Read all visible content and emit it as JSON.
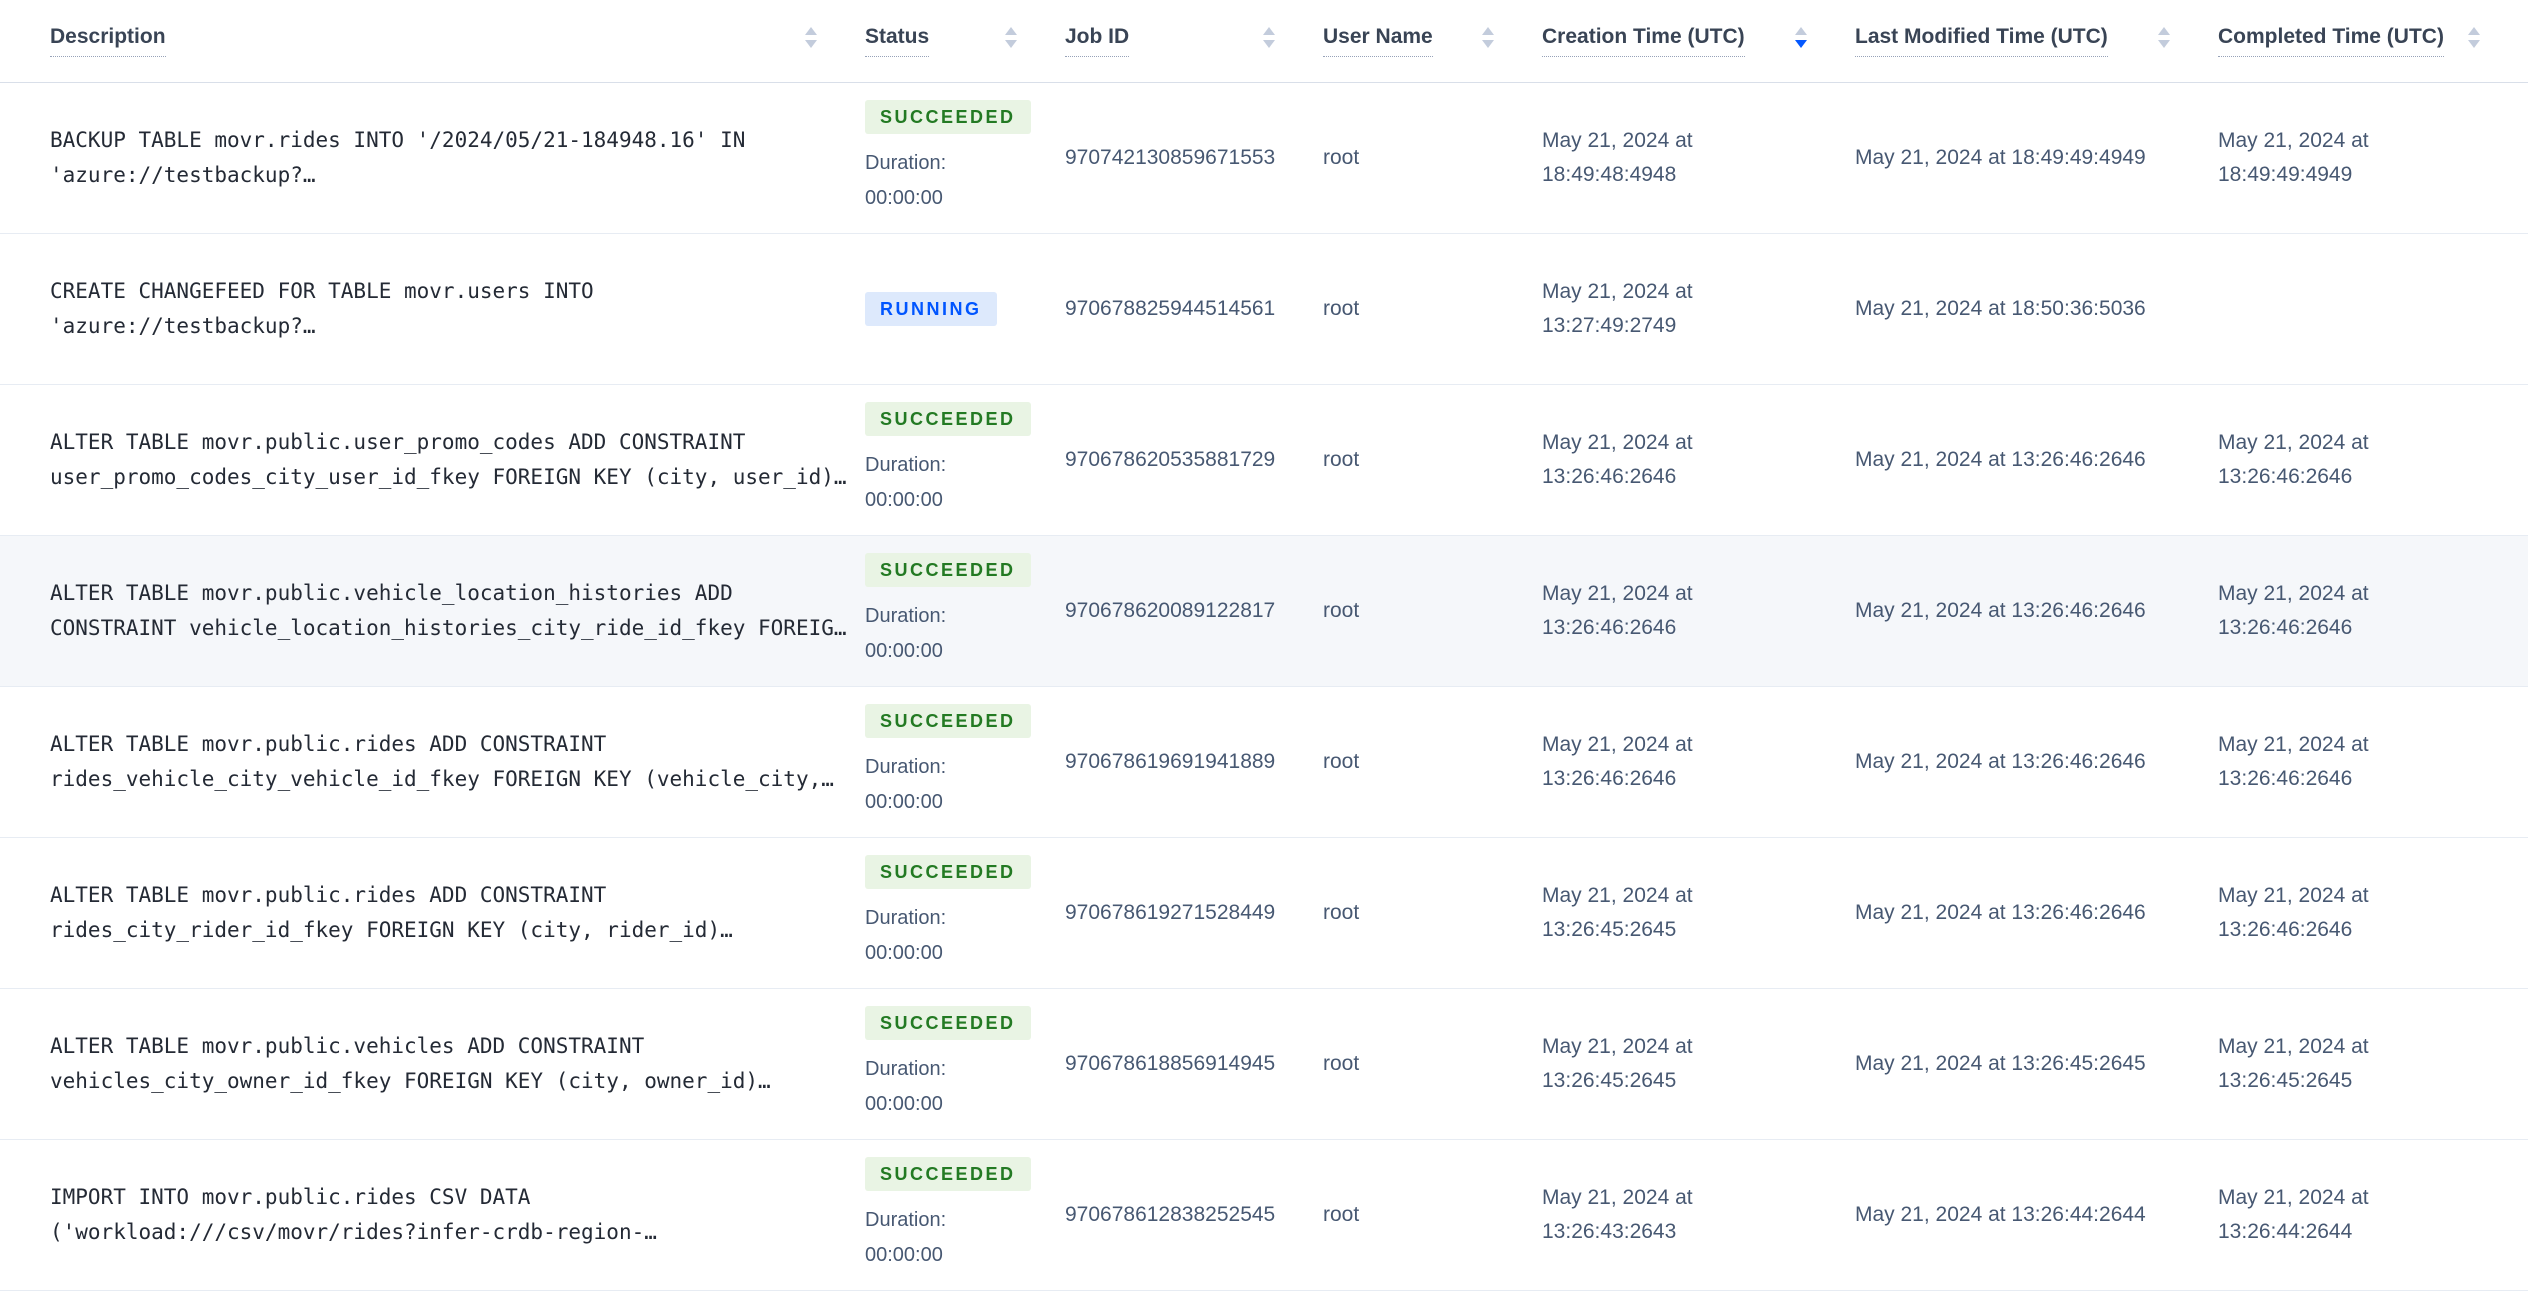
{
  "table": {
    "columns": [
      {
        "label": "Description",
        "sort": "none"
      },
      {
        "label": "Status",
        "sort": "none"
      },
      {
        "label": "Job ID",
        "sort": "none"
      },
      {
        "label": "User Name",
        "sort": "none"
      },
      {
        "label": "Creation Time (UTC)",
        "sort": "desc"
      },
      {
        "label": "Last Modified Time (UTC)",
        "sort": "none"
      },
      {
        "label": "Completed Time (UTC)",
        "sort": "none"
      }
    ],
    "duration_label": "Duration:",
    "rows": [
      {
        "description": "BACKUP TABLE movr.rides INTO '/2024/05/21-184948.16' IN 'azure://testbackup?…",
        "status": "SUCCEEDED",
        "duration": "00:00:00",
        "job_id": "970742130859671553",
        "user_name": "root",
        "creation_time": "May 21, 2024 at 18:49:48:4948",
        "last_modified_time": "May 21, 2024 at 18:49:49:4949",
        "completed_time": "May 21, 2024 at 18:49:49:4949",
        "highlighted": false
      },
      {
        "description": "CREATE CHANGEFEED FOR TABLE movr.users INTO 'azure://testbackup?…",
        "status": "RUNNING",
        "duration": "",
        "job_id": "970678825944514561",
        "user_name": "root",
        "creation_time": "May 21, 2024 at 13:27:49:2749",
        "last_modified_time": "May 21, 2024 at 18:50:36:5036",
        "completed_time": "",
        "highlighted": false
      },
      {
        "description": "ALTER TABLE movr.public.user_promo_codes ADD CONSTRAINT user_promo_codes_city_user_id_fkey FOREIGN KEY (city, user_id)…",
        "status": "SUCCEEDED",
        "duration": "00:00:00",
        "job_id": "970678620535881729",
        "user_name": "root",
        "creation_time": "May 21, 2024 at 13:26:46:2646",
        "last_modified_time": "May 21, 2024 at 13:26:46:2646",
        "completed_time": "May 21, 2024 at 13:26:46:2646",
        "highlighted": false
      },
      {
        "description": "ALTER TABLE movr.public.vehicle_location_histories ADD CONSTRAINT vehicle_location_histories_city_ride_id_fkey FOREIG…",
        "status": "SUCCEEDED",
        "duration": "00:00:00",
        "job_id": "970678620089122817",
        "user_name": "root",
        "creation_time": "May 21, 2024 at 13:26:46:2646",
        "last_modified_time": "May 21, 2024 at 13:26:46:2646",
        "completed_time": "May 21, 2024 at 13:26:46:2646",
        "highlighted": true
      },
      {
        "description": "ALTER TABLE movr.public.rides ADD CONSTRAINT rides_vehicle_city_vehicle_id_fkey FOREIGN KEY (vehicle_city,…",
        "status": "SUCCEEDED",
        "duration": "00:00:00",
        "job_id": "970678619691941889",
        "user_name": "root",
        "creation_time": "May 21, 2024 at 13:26:46:2646",
        "last_modified_time": "May 21, 2024 at 13:26:46:2646",
        "completed_time": "May 21, 2024 at 13:26:46:2646",
        "highlighted": false
      },
      {
        "description": "ALTER TABLE movr.public.rides ADD CONSTRAINT rides_city_rider_id_fkey FOREIGN KEY (city, rider_id)…",
        "status": "SUCCEEDED",
        "duration": "00:00:00",
        "job_id": "970678619271528449",
        "user_name": "root",
        "creation_time": "May 21, 2024 at 13:26:45:2645",
        "last_modified_time": "May 21, 2024 at 13:26:46:2646",
        "completed_time": "May 21, 2024 at 13:26:46:2646",
        "highlighted": false
      },
      {
        "description": "ALTER TABLE movr.public.vehicles ADD CONSTRAINT vehicles_city_owner_id_fkey FOREIGN KEY (city, owner_id)…",
        "status": "SUCCEEDED",
        "duration": "00:00:00",
        "job_id": "970678618856914945",
        "user_name": "root",
        "creation_time": "May 21, 2024 at 13:26:45:2645",
        "last_modified_time": "May 21, 2024 at 13:26:45:2645",
        "completed_time": "May 21, 2024 at 13:26:45:2645",
        "highlighted": false
      },
      {
        "description": "IMPORT INTO movr.public.rides CSV DATA ('workload:///csv/movr/rides?infer-crdb-region-…",
        "status": "SUCCEEDED",
        "duration": "00:00:00",
        "job_id": "970678612838252545",
        "user_name": "root",
        "creation_time": "May 21, 2024 at 13:26:43:2643",
        "last_modified_time": "May 21, 2024 at 13:26:44:2644",
        "completed_time": "May 21, 2024 at 13:26:44:2644",
        "highlighted": false
      }
    ]
  },
  "colors": {
    "succeeded_badge_bg": "#e9f4e4",
    "succeeded_badge_text": "#237a23",
    "running_badge_bg": "#dde9fc",
    "running_badge_text": "#0055ff",
    "sort_active": "#0458ff",
    "header_text": "#394455",
    "body_text": "#475872",
    "row_highlight": "#f5f7fa"
  }
}
